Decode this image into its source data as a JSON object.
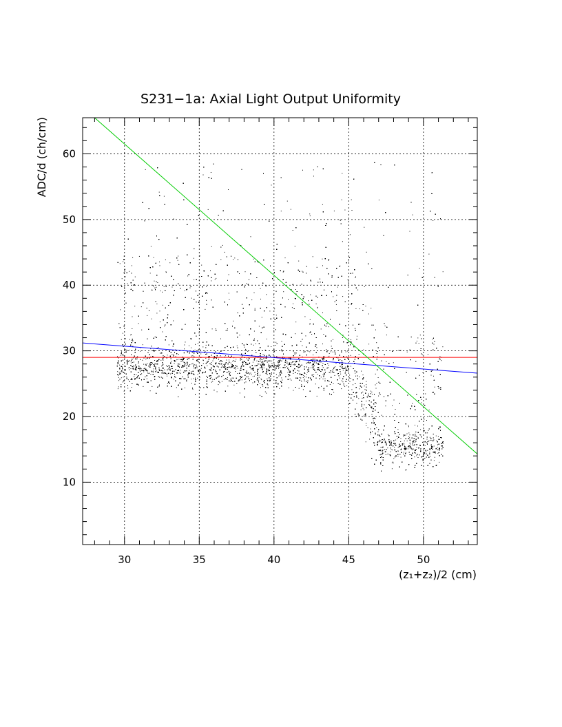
{
  "chart_data": {
    "type": "scatter",
    "title": "S231−1a: Axial Light Output Uniformity",
    "xlabel": "(z₁+z₂)/2 (cm)",
    "ylabel": "ADC/d (ch/cm)",
    "xlim": [
      27.2,
      53.6
    ],
    "ylim": [
      0.5,
      65.5
    ],
    "grid": true,
    "x_ticks": [
      30,
      35,
      40,
      45,
      50
    ],
    "x_tick_labels": [
      "30",
      "35",
      "40",
      "45",
      "50"
    ],
    "y_ticks": [
      10,
      20,
      30,
      40,
      50,
      60
    ],
    "y_tick_labels": [
      "10",
      "20",
      "30",
      "40",
      "50",
      "60"
    ],
    "scatter_x_range": [
      29.5,
      51.3
    ],
    "scatter_density_profile": [
      {
        "x_range": [
          29.5,
          45
        ],
        "core_y": 27.5,
        "core_spread": 3,
        "upper_tail_to": 59
      },
      {
        "x_range": [
          45,
          47
        ],
        "core_y": 25,
        "core_spread": 5,
        "upper_tail_to": 59
      },
      {
        "x_range": [
          47,
          51.3
        ],
        "core_y": 15.5,
        "core_spread": 3,
        "upper_tail_to": 59
      }
    ],
    "fit_lines": [
      {
        "color": "#ff0000",
        "x": [
          27.2,
          53.6
        ],
        "y": [
          29.0,
          29.0
        ]
      },
      {
        "color": "#0000ff",
        "x": [
          27.2,
          53.6
        ],
        "y": [
          31.2,
          26.6
        ]
      },
      {
        "color": "#00cc00",
        "x": [
          28.0,
          53.6
        ],
        "y": [
          65.5,
          14.3
        ]
      }
    ],
    "point_color": "#000000"
  }
}
